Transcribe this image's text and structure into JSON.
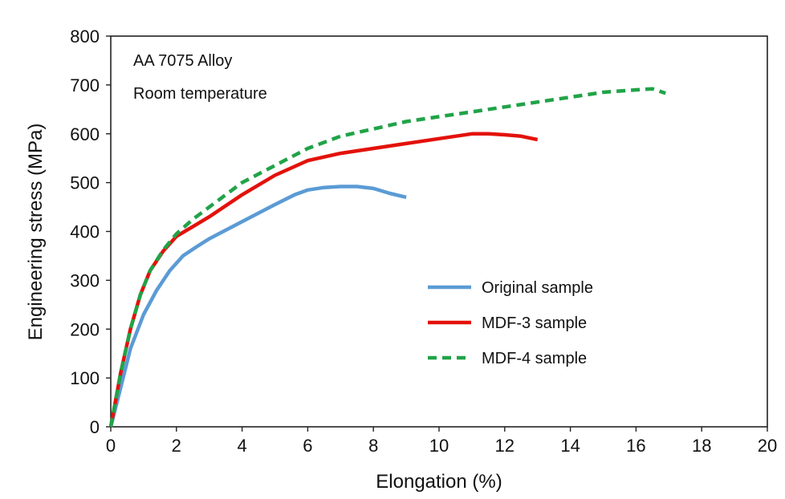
{
  "chart_data": {
    "type": "line",
    "xlabel": "Elongation (%)",
    "ylabel": "Engineering stress (MPa)",
    "xlim": [
      0,
      20
    ],
    "ylim": [
      0,
      800
    ],
    "xticks": [
      0,
      2,
      4,
      6,
      8,
      10,
      12,
      14,
      16,
      18,
      20
    ],
    "yticks": [
      0,
      100,
      200,
      300,
      400,
      500,
      600,
      700,
      800
    ],
    "grid": false,
    "legend_position": "center-right",
    "annotations": [
      "AA 7075 Alloy",
      "Room temperature"
    ],
    "series": [
      {
        "name": "Original sample",
        "color": "#5b9bd5",
        "dash": "solid",
        "x": [
          0,
          0.3,
          0.6,
          1.0,
          1.4,
          1.8,
          2.2,
          2.6,
          3.0,
          4.0,
          5.0,
          5.6,
          6.0,
          6.5,
          7.0,
          7.5,
          8.0,
          8.5,
          9.0
        ],
        "y": [
          0,
          80,
          160,
          230,
          280,
          320,
          350,
          368,
          385,
          420,
          455,
          475,
          485,
          490,
          492,
          492,
          488,
          478,
          470
        ]
      },
      {
        "name": "MDF-3 sample",
        "color": "#e3120b",
        "dash": "solid",
        "x": [
          0,
          0.3,
          0.6,
          0.9,
          1.2,
          1.6,
          2.0,
          2.5,
          3.0,
          4.0,
          5.0,
          6.0,
          7.0,
          8.0,
          9.0,
          10.0,
          11.0,
          11.5,
          12.0,
          12.5,
          13.0
        ],
        "y": [
          0,
          110,
          200,
          270,
          320,
          360,
          390,
          410,
          430,
          475,
          515,
          545,
          560,
          570,
          580,
          590,
          600,
          600,
          598,
          595,
          588
        ]
      },
      {
        "name": "MDF-4 sample",
        "color": "#21a348",
        "dash": "dashed",
        "x": [
          0,
          0.3,
          0.6,
          0.9,
          1.2,
          1.6,
          2.0,
          2.5,
          3.0,
          4.0,
          5.0,
          6.0,
          7.0,
          8.0,
          9.0,
          10.0,
          11.0,
          12.0,
          13.0,
          14.0,
          15.0,
          16.0,
          16.5,
          16.9
        ],
        "y": [
          0,
          110,
          200,
          270,
          320,
          362,
          395,
          425,
          450,
          500,
          535,
          570,
          595,
          610,
          625,
          635,
          645,
          655,
          665,
          675,
          685,
          690,
          692,
          683
        ]
      }
    ]
  }
}
